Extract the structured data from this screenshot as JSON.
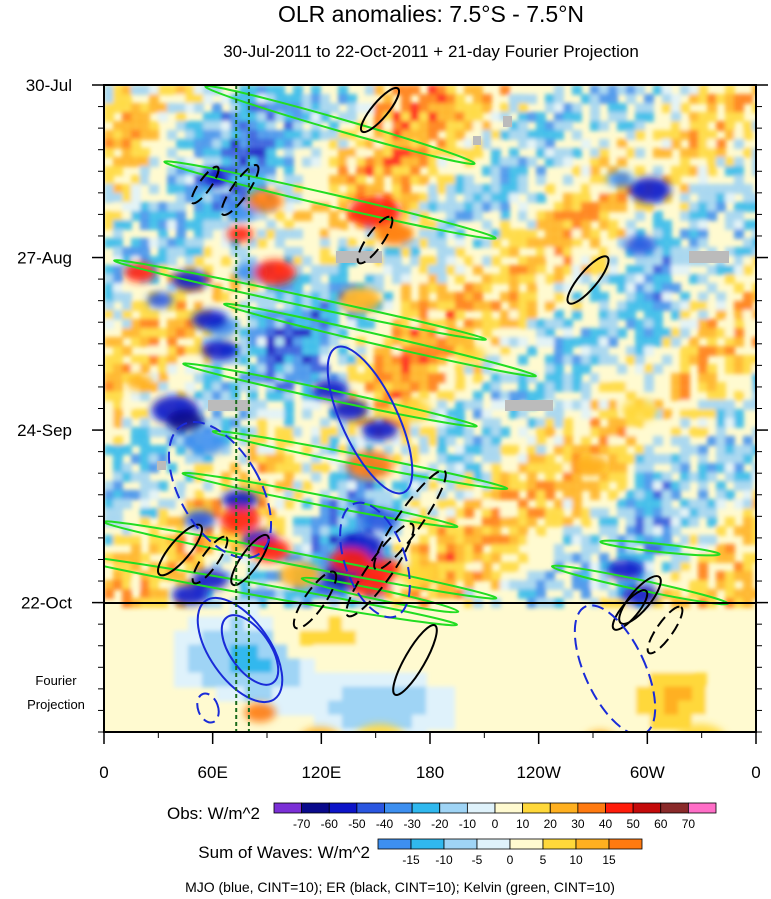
{
  "chart_data": {
    "type": "heatmap",
    "title": "OLR anomalies: 7.5°S - 7.5°N",
    "subtitle": "30-Jul-2011 to 22-Oct-2011 + 21-day Fourier Projection",
    "x_ticks": [
      "0",
      "60E",
      "120E",
      "180",
      "120W",
      "60W",
      "0"
    ],
    "x_tick_values": [
      0,
      60,
      120,
      180,
      240,
      300,
      360
    ],
    "xlim": [
      0,
      360
    ],
    "y_ticks": [
      "30-Jul",
      "27-Aug",
      "24-Sep",
      "22-Oct"
    ],
    "y_tick_days": [
      0,
      28,
      56,
      84
    ],
    "ylim_days": [
      0,
      105
    ],
    "projection_label": [
      "Fourier",
      "Projection"
    ],
    "obs_colorbar": {
      "title": "Obs: W/m^2",
      "levels": [
        -70,
        -60,
        -50,
        -40,
        -30,
        -20,
        -10,
        0,
        10,
        20,
        30,
        40,
        50,
        60,
        70
      ],
      "labels": [
        "-70",
        "-60",
        "-50",
        "-40",
        "-30",
        "-20",
        "-10",
        "0",
        "10",
        "20",
        "30",
        "40",
        "50",
        "60",
        "70"
      ],
      "colors": [
        "#7b2fd6",
        "#0a0a8c",
        "#0d14c8",
        "#2a56e0",
        "#3d8ff0",
        "#30b8ee",
        "#9fd4f5",
        "#dff2fb",
        "#fffad0",
        "#ffd83a",
        "#ffb020",
        "#ff7a10",
        "#ff1c0a",
        "#c40a0a",
        "#8a2a2a",
        "#ff6ec7"
      ]
    },
    "waves_colorbar": {
      "title": "Sum of Waves: W/m^2",
      "levels": [
        -15,
        -10,
        -5,
        0,
        5,
        10,
        15
      ],
      "labels": [
        "-15",
        "-10",
        "-5",
        "0",
        "5",
        "10",
        "15"
      ],
      "colors": [
        "#3d8ff0",
        "#30b8ee",
        "#9fd4f5",
        "#dff2fb",
        "#fffad0",
        "#ffd83a",
        "#ffb020",
        "#ff7a10"
      ]
    },
    "footer": "MJO (blue, CINT=10); ER (black, CINT=10); Kelvin (green, CINT=10)",
    "series": [
      {
        "name": "MJO",
        "color": "#1a2bd8"
      },
      {
        "name": "ER",
        "color": "#000000"
      },
      {
        "name": "Kelvin",
        "color": "#22dd22"
      }
    ],
    "reference_line_longitudes": [
      73,
      80
    ]
  }
}
